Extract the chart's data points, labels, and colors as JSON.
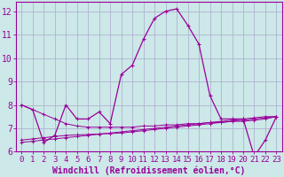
{
  "x": [
    0,
    1,
    2,
    3,
    4,
    5,
    6,
    7,
    8,
    9,
    10,
    11,
    12,
    13,
    14,
    15,
    16,
    17,
    18,
    19,
    20,
    21,
    22,
    23
  ],
  "line_main": [
    8.0,
    7.8,
    6.4,
    6.7,
    8.0,
    7.4,
    7.4,
    7.7,
    7.2,
    9.3,
    9.7,
    10.8,
    11.7,
    12.0,
    12.1,
    11.4,
    10.6,
    8.4,
    7.4,
    7.4,
    7.4,
    5.8,
    6.5,
    7.5
  ],
  "line_flat1": [
    8.0,
    7.8,
    7.6,
    7.4,
    7.2,
    7.1,
    7.05,
    7.05,
    7.05,
    7.05,
    7.05,
    7.1,
    7.1,
    7.15,
    7.15,
    7.2,
    7.2,
    7.25,
    7.25,
    7.3,
    7.3,
    7.35,
    7.4,
    7.5
  ],
  "line_flat2": [
    6.5,
    6.55,
    6.6,
    6.65,
    6.7,
    6.72,
    6.74,
    6.76,
    6.78,
    6.8,
    6.85,
    6.9,
    6.95,
    7.0,
    7.05,
    7.1,
    7.15,
    7.2,
    7.25,
    7.3,
    7.35,
    7.4,
    7.45,
    7.5
  ],
  "line_flat3": [
    6.4,
    6.45,
    6.5,
    6.55,
    6.6,
    6.65,
    6.7,
    6.75,
    6.8,
    6.85,
    6.9,
    6.95,
    7.0,
    7.05,
    7.1,
    7.15,
    7.2,
    7.25,
    7.3,
    7.35,
    7.4,
    7.45,
    7.5,
    7.5
  ],
  "color": "#990099",
  "bg_color": "#cce8e8",
  "grid_color": "#aaaacc",
  "ylim": [
    6.0,
    12.4
  ],
  "yticks": [
    6,
    7,
    8,
    9,
    10,
    11,
    12
  ],
  "xlim": [
    -0.5,
    23.5
  ],
  "xlabel": "Windchill (Refroidissement éolien,°C)",
  "tick_fontsize": 6.5
}
